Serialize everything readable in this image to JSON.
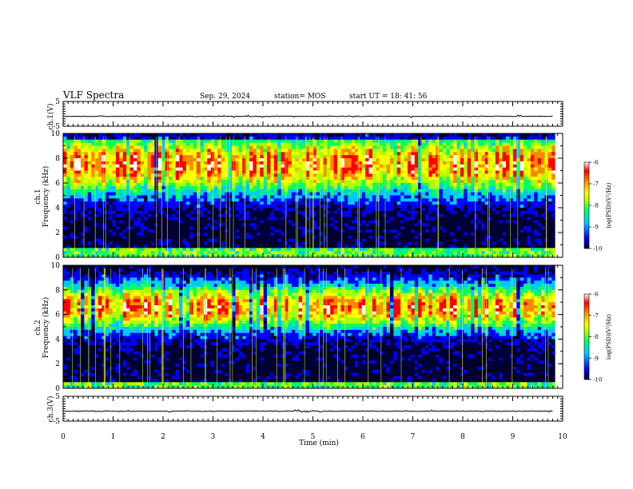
{
  "header": {
    "title": "VLF Spectra",
    "date": "Sep. 29, 2024",
    "station": "station= MOS",
    "start_ut": "start  UT =   18: 41: 56"
  },
  "chart_data": [
    {
      "type": "line",
      "panel": "ch1-waveform",
      "ylabel": "ch.1(V)",
      "ylim": [
        -5,
        5
      ],
      "yticks": [
        "5",
        "-5"
      ],
      "baseline": -1,
      "xlim": [
        0,
        10
      ],
      "line_color": "#000000"
    },
    {
      "type": "heatmap",
      "panel": "ch1-spectrogram",
      "ylabel": "ch.1\nFrequency (kHz)",
      "ylim": [
        0,
        10
      ],
      "yticks": [
        "0",
        "2",
        "4",
        "6",
        "8",
        "10"
      ],
      "xlim": [
        0,
        9.85
      ],
      "band_peak_khz": 7.5,
      "colorbar": {
        "label": "log(PSD)(V²/Hz)",
        "range": [
          -10,
          -6
        ],
        "ticks": [
          "-6",
          "-7",
          "-8",
          "-9",
          "-10"
        ]
      }
    },
    {
      "type": "heatmap",
      "panel": "ch2-spectrogram",
      "ylabel": "ch.2\nFrequency (kHz)",
      "ylim": [
        0,
        10
      ],
      "yticks": [
        "0",
        "2",
        "4",
        "6",
        "8",
        "10"
      ],
      "xlim": [
        0,
        9.85
      ],
      "band_peak_khz": 6.6,
      "colorbar": {
        "label": "log(PSD)(V²/Hz)",
        "range": [
          -10,
          -6
        ],
        "ticks": [
          "-6",
          "-7",
          "-8",
          "-9",
          "-10"
        ]
      }
    },
    {
      "type": "line",
      "panel": "ch3-waveform",
      "ylabel": "ch.3(V)",
      "ylim": [
        -5,
        5
      ],
      "yticks": [
        "5",
        "-5"
      ],
      "baseline": -1,
      "xlim": [
        0,
        10
      ],
      "line_color": "#000000"
    }
  ],
  "x_axis": {
    "label": "Time  (min)",
    "range": [
      0,
      10
    ],
    "ticks": [
      "0",
      "1",
      "2",
      "3",
      "4",
      "5",
      "6",
      "7",
      "8",
      "9",
      "10"
    ]
  },
  "colormap": [
    "#000033",
    "#0000ff",
    "#00c8ff",
    "#00ff66",
    "#aaff00",
    "#ffff00",
    "#ff8800",
    "#ff0000",
    "#ffffff"
  ]
}
